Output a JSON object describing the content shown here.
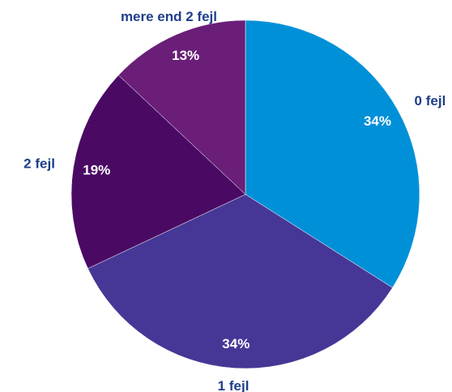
{
  "chart_data": {
    "type": "pie",
    "categories": [
      "0 fejl",
      "1 fejl",
      "2 fejl",
      "mere end 2 fejl"
    ],
    "values": [
      34,
      34,
      19,
      13
    ],
    "value_labels": [
      "34%",
      "34%",
      "19%",
      "13%"
    ],
    "colors": [
      "#0090d8",
      "#463796",
      "#4a0a64",
      "#6a1e78"
    ]
  }
}
